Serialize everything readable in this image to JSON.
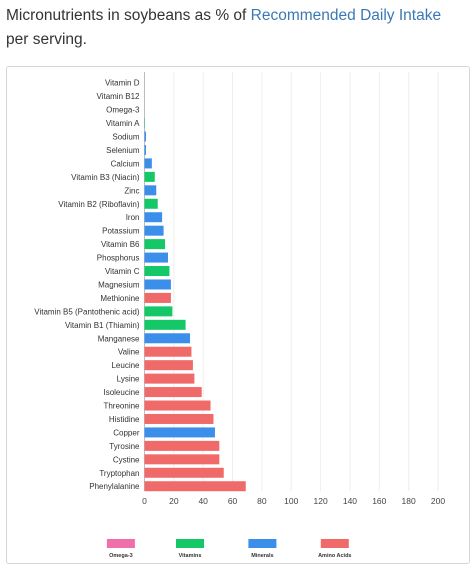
{
  "heading": {
    "prefix": "Micronutrients in soybeans as % of ",
    "link": "Recommended Daily Intake",
    "suffix": " per serving."
  },
  "chart_data": {
    "type": "bar",
    "orientation": "horizontal",
    "categories": [
      "Vitamin D",
      "Vitamin B12",
      "Omega-3",
      "Vitamin A",
      "Sodium",
      "Selenium",
      "Calcium",
      "Vitamin B3 (Niacin)",
      "Zinc",
      "Vitamin B2 (Riboflavin)",
      "Iron",
      "Potassium",
      "Vitamin B6",
      "Phosphorus",
      "Vitamin C",
      "Magnesium",
      "Methionine",
      "Vitamin B5 (Pantothenic acid)",
      "Vitamin B1 (Thiamin)",
      "Manganese",
      "Valine",
      "Leucine",
      "Lysine",
      "Isoleucine",
      "Threonine",
      "Histidine",
      "Copper",
      "Tyrosine",
      "Cystine",
      "Tryptophan",
      "Phenylalanine"
    ],
    "values": [
      0,
      0,
      0,
      0.3,
      1,
      1,
      5,
      7,
      8,
      9,
      12,
      13,
      14,
      16,
      17,
      18,
      18,
      19,
      28,
      31,
      32,
      33,
      34,
      39,
      45,
      47,
      48,
      51,
      51,
      54,
      69
    ],
    "groups": [
      "Omega-3",
      "Vitamins",
      "Omega-3",
      "Vitamins",
      "Minerals",
      "Minerals",
      "Minerals",
      "Vitamins",
      "Minerals",
      "Vitamins",
      "Minerals",
      "Minerals",
      "Vitamins",
      "Minerals",
      "Vitamins",
      "Minerals",
      "Amino Acids",
      "Vitamins",
      "Vitamins",
      "Minerals",
      "Amino Acids",
      "Amino Acids",
      "Amino Acids",
      "Amino Acids",
      "Amino Acids",
      "Amino Acids",
      "Minerals",
      "Amino Acids",
      "Amino Acids",
      "Amino Acids",
      "Amino Acids"
    ],
    "xlim": [
      0,
      200
    ],
    "xticks": [
      0,
      20,
      40,
      60,
      80,
      100,
      120,
      140,
      160,
      180,
      200
    ],
    "legend": [
      {
        "name": "Omega-3",
        "color": "#f06eaa"
      },
      {
        "name": "Vitamins",
        "color": "#14c767"
      },
      {
        "name": "Minerals",
        "color": "#3b8eea"
      },
      {
        "name": "Amino Acids",
        "color": "#f16a6a"
      }
    ],
    "legend_position": "bottom",
    "grid": true
  }
}
